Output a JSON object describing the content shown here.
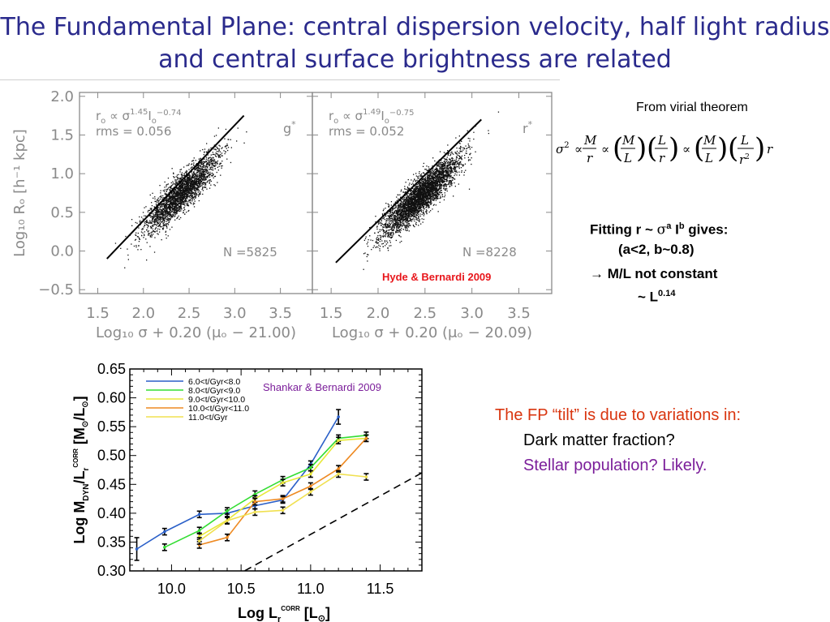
{
  "slide": {
    "title_line1": "The Fundamental Plane: central dispersion velocity, half light radius",
    "title_line2": "and central surface brightness are related"
  },
  "notes": {
    "virial_caption": "From virial theorem",
    "fitting_line1_a": "Fitting r ~ ",
    "fitting_line1_sigma": "σ",
    "fitting_line1_a_exp": "a",
    "fitting_line1_I": " I",
    "fitting_line1_b_exp": "b",
    "fitting_line1_end": " gives:",
    "fitting_line2": "(a<2, b~0.8)",
    "fitting_line3": "→ M/L not constant",
    "fitting_line4_base": "~ L",
    "fitting_line4_exp": "0.14",
    "tilt_line1": "The FP “tilt” is due to variations in:",
    "tilt_line2": "Dark matter fraction?",
    "tilt_line3": "Stellar population? Likely.",
    "hyde_credit": "Hyde & Bernardi 2009",
    "shankar_credit": "Shankar & Bernardi 2009"
  },
  "colors": {
    "title": "#2a2a8c",
    "hyde_credit": "#e8161b",
    "tilt_line1": "#d9350f",
    "tilt_line3": "#7b1e9a",
    "shankar_credit": "#7b1e9a",
    "axis_gray": "#8a8a8a"
  },
  "chart_data": [
    {
      "type": "scatter",
      "panel": "left",
      "band": "g*",
      "annotation_rel_base": "r",
      "annotation_rel_sub": "o",
      "annotation_rel_sym": "∝ σ",
      "annotation_rel_exp1": "1.45",
      "annotation_rel_mid": "I",
      "annotation_rel_sub2": "o",
      "annotation_rel_exp2": "−0.74",
      "annotation_rms": "rms = 0.056",
      "annotation_n": "N =5825",
      "n_points": 5825,
      "fit_slope": 1.45,
      "fit_line": [
        [
          1.6,
          -0.1
        ],
        [
          3.1,
          1.75
        ]
      ],
      "scatter_center": [
        2.4,
        0.74
      ],
      "xlim": [
        1.3,
        3.85
      ],
      "ylim": [
        -0.55,
        2.05
      ],
      "xticks": [
        "1.5",
        "2.0",
        "2.5",
        "3.0",
        "3.5"
      ],
      "yticks": [
        "−0.5",
        "0.0",
        "0.5",
        "1.0",
        "1.5",
        "2.0"
      ],
      "xlabel": "Log₁₀ σ + 0.20 (μₒ − 21.00)",
      "ylabel": "Log₁₀ Rₒ [h⁻¹ kpc]"
    },
    {
      "type": "scatter",
      "panel": "right",
      "band": "r*",
      "annotation_rel_base": "r",
      "annotation_rel_sub": "o",
      "annotation_rel_sym": "∝ σ",
      "annotation_rel_exp1": "1.49",
      "annotation_rel_mid": "I",
      "annotation_rel_sub2": "o",
      "annotation_rel_exp2": "−0.75",
      "annotation_rms": "rms = 0.052",
      "annotation_n": "N =8228",
      "n_points": 8228,
      "fit_slope": 1.49,
      "fit_line": [
        [
          1.55,
          -0.15
        ],
        [
          3.1,
          1.7
        ]
      ],
      "scatter_center": [
        2.45,
        0.72
      ],
      "xlim": [
        1.3,
        3.85
      ],
      "ylim": [
        -0.55,
        2.05
      ],
      "xticks": [
        "1.5",
        "2.0",
        "2.5",
        "3.0",
        "3.5"
      ],
      "xlabel": "Log₁₀ σ + 0.20 (μₒ − 20.09)"
    },
    {
      "type": "line",
      "xlim": [
        9.7,
        11.8
      ],
      "ylim": [
        0.3,
        0.65
      ],
      "xticks": [
        10.0,
        10.5,
        11.0,
        11.5
      ],
      "yticks": [
        0.3,
        0.35,
        0.4,
        0.45,
        0.5,
        0.55,
        0.6,
        0.65
      ],
      "xtick_labels": [
        "10.0",
        "10.5",
        "11.0",
        "11.5"
      ],
      "ytick_labels": [
        "0.30",
        "0.35",
        "0.40",
        "0.45",
        "0.50",
        "0.55",
        "0.60",
        "0.65"
      ],
      "xlabel_base": "Log L",
      "xlabel_sub": "r",
      "xlabel_sup": "CORR",
      "xlabel_unit": "[L",
      "xlabel_unit_sub": "⊙",
      "xlabel_unit_end": "]",
      "ylabel_base": "Log M",
      "ylabel_sub": "DYN",
      "ylabel_mid": "/L",
      "ylabel_sub2": "r",
      "ylabel_sup2": "CORR",
      "ylabel_unit": "[M",
      "ylabel_unit_sub": "⊙",
      "ylabel_mid2": "/L",
      "ylabel_unit_sub2": "⊙",
      "ylabel_unit_end": "]",
      "reference_line": [
        [
          10.45,
          0.29
        ],
        [
          11.8,
          0.47
        ]
      ],
      "series": [
        {
          "name": "6.0<t/Gyr<8.0",
          "color": "#2a5fc8",
          "x": [
            9.75,
            9.95,
            10.2,
            10.4,
            10.6,
            10.8,
            11.0,
            11.2
          ],
          "y": [
            0.338,
            0.368,
            0.398,
            0.4,
            0.413,
            0.423,
            0.485,
            0.567
          ]
        },
        {
          "name": "8.0<t/Gyr<9.0",
          "color": "#33dd33",
          "x": [
            9.95,
            10.2,
            10.4,
            10.6,
            10.8,
            11.0,
            11.2,
            11.4
          ],
          "y": [
            0.341,
            0.37,
            0.404,
            0.433,
            0.458,
            0.479,
            0.53,
            0.535
          ]
        },
        {
          "name": "9.0<t/Gyr<10.0",
          "color": "#e8e83a",
          "x": [
            10.2,
            10.4,
            10.6,
            10.8,
            11.0,
            11.2,
            11.4
          ],
          "y": [
            0.36,
            0.388,
            0.425,
            0.453,
            0.468,
            0.526,
            0.53
          ]
        },
        {
          "name": "10.0<t/Gyr<11.0",
          "color": "#ee8a22",
          "x": [
            10.2,
            10.4,
            10.6,
            10.8,
            11.0,
            11.2,
            11.4
          ],
          "y": [
            0.345,
            0.358,
            0.42,
            0.425,
            0.447,
            0.477,
            0.53
          ]
        },
        {
          "name": "11.0<t/Gyr",
          "color": "#f0e050",
          "x": [
            10.2,
            10.4,
            10.6,
            10.8,
            11.0,
            11.2,
            11.4
          ],
          "y": [
            0.352,
            0.387,
            0.402,
            0.405,
            0.437,
            0.468,
            0.463
          ]
        }
      ]
    }
  ]
}
